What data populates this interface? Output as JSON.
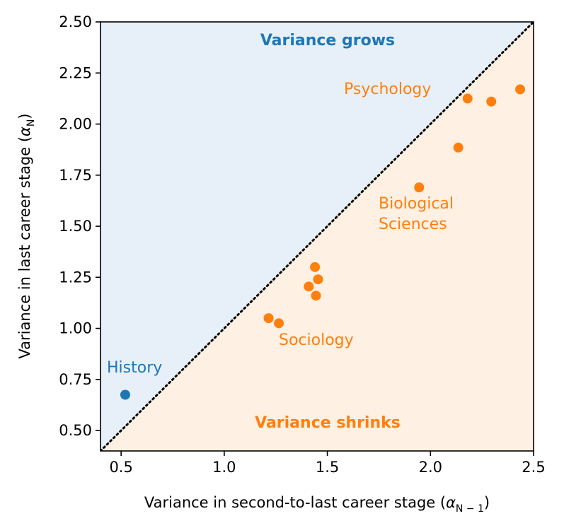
{
  "chart_data": {
    "type": "scatter",
    "xlabel": "Variance in second-to-last career stage (",
    "xlabel_symbol": "α",
    "xlabel_sub": "N − 1",
    "xlabel_close": ")",
    "ylabel": "Variance in last career stage (",
    "ylabel_symbol": "α",
    "ylabel_sub": "N",
    "ylabel_close": ")",
    "xlim": [
      0.4,
      2.5
    ],
    "ylim": [
      0.4,
      2.5
    ],
    "xticks": [
      0.5,
      1.0,
      1.5,
      2.0,
      2.5
    ],
    "xtick_labels": [
      "0.5",
      "1.0",
      "1.5",
      "2.0",
      "2.5"
    ],
    "yticks": [
      0.5,
      0.75,
      1.0,
      1.25,
      1.5,
      1.75,
      2.0,
      2.25,
      2.5
    ],
    "ytick_labels": [
      "0.50",
      "0.75",
      "1.00",
      "1.25",
      "1.50",
      "1.75",
      "2.00",
      "2.25",
      "2.50"
    ],
    "reference_line": "y = x (dotted)",
    "colors": {
      "grows": "#1f77b4",
      "shrinks": "#ff7f0e",
      "grows_fill": "#e7f0f8",
      "shrinks_fill": "#fef0e2"
    },
    "regions": {
      "grows_label": "Variance grows",
      "shrinks_label": "Variance shrinks"
    },
    "series": [
      {
        "name": "Variance grows",
        "color": "#1f77b4",
        "points": [
          {
            "x": 0.52,
            "y": 0.675
          }
        ]
      },
      {
        "name": "Variance shrinks",
        "color": "#ff7f0e",
        "points": [
          {
            "x": 1.215,
            "y": 1.05
          },
          {
            "x": 1.265,
            "y": 1.025
          },
          {
            "x": 1.41,
            "y": 1.205
          },
          {
            "x": 1.44,
            "y": 1.3
          },
          {
            "x": 1.455,
            "y": 1.24
          },
          {
            "x": 1.445,
            "y": 1.16
          },
          {
            "x": 1.945,
            "y": 1.69
          },
          {
            "x": 2.135,
            "y": 1.885
          },
          {
            "x": 2.18,
            "y": 2.125
          },
          {
            "x": 2.295,
            "y": 2.11
          },
          {
            "x": 2.435,
            "y": 2.17
          }
        ]
      }
    ],
    "annotations": [
      {
        "text": "History",
        "color": "#1f77b4",
        "lines": [
          "History"
        ]
      },
      {
        "text": "Psychology",
        "color": "#ff7f0e",
        "lines": [
          "Psychology"
        ]
      },
      {
        "text": "Biological Sciences",
        "color": "#ff7f0e",
        "lines": [
          "Biological",
          "Sciences"
        ]
      },
      {
        "text": "Sociology",
        "color": "#ff7f0e",
        "lines": [
          "Sociology"
        ]
      }
    ]
  }
}
